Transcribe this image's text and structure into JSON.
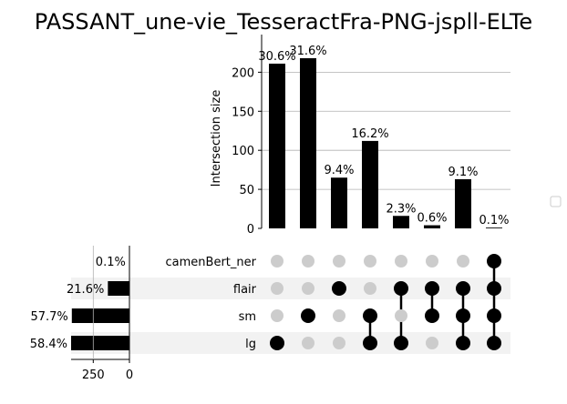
{
  "chart_data": {
    "type": "bar",
    "title": "PASSANT_une-vie_TesseractFra-PNG-jspll-ELTe",
    "ylabel": "Intersection size",
    "ylim": [
      0,
      232
    ],
    "yticks": [
      0,
      50,
      100,
      150,
      200
    ],
    "grid": true,
    "intersections": [
      {
        "members": [
          "lg"
        ],
        "value": 211,
        "label": "30.6%"
      },
      {
        "members": [
          "sm"
        ],
        "value": 218,
        "label": "31.6%"
      },
      {
        "members": [
          "flair"
        ],
        "value": 65,
        "label": "9.4%"
      },
      {
        "members": [
          "sm",
          "lg"
        ],
        "value": 112,
        "label": "16.2%"
      },
      {
        "members": [
          "flair",
          "lg"
        ],
        "value": 16,
        "label": "2.3%"
      },
      {
        "members": [
          "flair",
          "sm"
        ],
        "value": 4,
        "label": "0.6%"
      },
      {
        "members": [
          "flair",
          "sm",
          "lg"
        ],
        "value": 63,
        "label": "9.1%"
      },
      {
        "members": [
          "camenBert_ner",
          "flair",
          "sm",
          "lg"
        ],
        "value": 1,
        "label": "0.1%"
      }
    ],
    "sets": [
      {
        "name": "camenBert_ner",
        "size": 1,
        "label": "0.1%"
      },
      {
        "name": "flair",
        "size": 149,
        "label": "21.6%"
      },
      {
        "name": "sm",
        "size": 398,
        "label": "57.7%"
      },
      {
        "name": "lg",
        "size": 403,
        "label": "58.4%"
      }
    ],
    "set_axis": {
      "ticks": [
        250,
        0
      ],
      "max": 404
    }
  }
}
